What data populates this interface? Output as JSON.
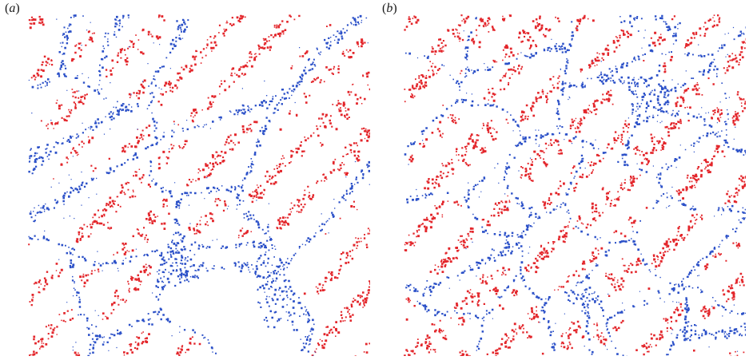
{
  "panels": [
    {
      "label_open": "(",
      "label_letter": "a",
      "label_close": ")",
      "seed": 7,
      "style": "coarse",
      "colors": {
        "boundary": "#2b50c8",
        "particle": "#e3262b",
        "background": "#ffffff"
      }
    },
    {
      "label_open": "(",
      "label_letter": "b",
      "label_close": ")",
      "seed": 23,
      "style": "fine",
      "colors": {
        "boundary": "#2b50c8",
        "particle": "#e3262b",
        "background": "#ffffff"
      }
    }
  ]
}
